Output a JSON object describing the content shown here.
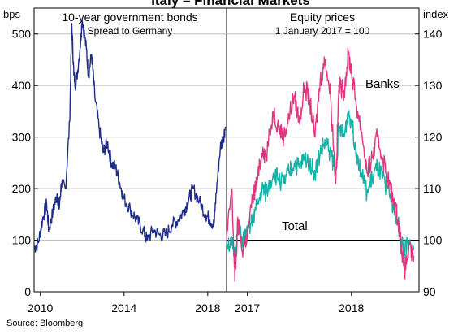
{
  "title": "Italy – Financial Markets",
  "source": "Source:   Bloomberg",
  "colors": {
    "bonds": "#1f2d8a",
    "banks": "#e0357f",
    "total": "#12b3a8"
  },
  "chart_data": [
    {
      "type": "line",
      "title": "10-year government bonds",
      "subtitle": "Spread to Germany",
      "ylabel": "bps",
      "ylim": [
        0,
        550
      ],
      "yticks": [
        0,
        100,
        200,
        300,
        400,
        500
      ],
      "xlim": [
        2009.7,
        2018.9
      ],
      "xticks": [
        "2010",
        "2014",
        "2018"
      ],
      "xtick_values": [
        2010,
        2014,
        2018
      ],
      "series": [
        {
          "name": "",
          "x": [
            2009.7,
            2009.9,
            2010.1,
            2010.3,
            2010.4,
            2010.6,
            2010.8,
            2010.9,
            2011.0,
            2011.2,
            2011.4,
            2011.5,
            2011.6,
            2011.7,
            2011.9,
            2012.0,
            2012.2,
            2012.3,
            2012.45,
            2012.6,
            2012.8,
            2013.0,
            2013.2,
            2013.4,
            2013.6,
            2013.8,
            2014.0,
            2014.3,
            2014.6,
            2014.9,
            2015.1,
            2015.4,
            2015.7,
            2016.0,
            2016.3,
            2016.6,
            2016.9,
            2017.1,
            2017.3,
            2017.6,
            2017.9,
            2018.1,
            2018.3,
            2018.4,
            2018.6,
            2018.75,
            2018.85
          ],
          "values": [
            85,
            95,
            140,
            170,
            120,
            155,
            190,
            160,
            210,
            200,
            330,
            520,
            420,
            400,
            475,
            530,
            470,
            420,
            460,
            380,
            320,
            270,
            290,
            250,
            240,
            210,
            180,
            160,
            140,
            120,
            100,
            120,
            110,
            110,
            130,
            140,
            160,
            180,
            200,
            175,
            150,
            140,
            130,
            190,
            280,
            300,
            320
          ]
        }
      ]
    },
    {
      "type": "line",
      "title": "Equity prices",
      "subtitle": "1 January 2017 = 100",
      "ylabel": "index",
      "ylim": [
        90,
        145
      ],
      "yticks": [
        90,
        100,
        110,
        120,
        130,
        140
      ],
      "xlim": [
        2016.95,
        2018.8
      ],
      "xticks": [
        "2017",
        "2018"
      ],
      "xtick_values": [
        2017.15,
        2018.15
      ],
      "reference_line": 100,
      "series": [
        {
          "name": "Banks",
          "x": [
            2016.95,
            2017.0,
            2017.03,
            2017.06,
            2017.1,
            2017.15,
            2017.2,
            2017.25,
            2017.3,
            2017.33,
            2017.4,
            2017.45,
            2017.5,
            2017.55,
            2017.6,
            2017.65,
            2017.7,
            2017.75,
            2017.8,
            2017.85,
            2017.9,
            2017.95,
            2018.0,
            2018.03,
            2018.08,
            2018.12,
            2018.15,
            2018.2,
            2018.25,
            2018.3,
            2018.35,
            2018.4,
            2018.45,
            2018.5,
            2018.55,
            2018.6,
            2018.63,
            2018.66,
            2018.7,
            2018.75
          ],
          "values": [
            100,
            110,
            92,
            104,
            98,
            101,
            108,
            112,
            118,
            116,
            125,
            122,
            120,
            124,
            128,
            123,
            130,
            127,
            120,
            131,
            135,
            128,
            111,
            130,
            129,
            136,
            133,
            126,
            121,
            113,
            116,
            120,
            116,
            112,
            108,
            104,
            99,
            94,
            98,
            97
          ]
        },
        {
          "name": "Total",
          "x": [
            2016.95,
            2017.0,
            2017.03,
            2017.06,
            2017.1,
            2017.15,
            2017.2,
            2017.25,
            2017.3,
            2017.33,
            2017.4,
            2017.45,
            2017.5,
            2017.55,
            2017.6,
            2017.65,
            2017.7,
            2017.75,
            2017.8,
            2017.85,
            2017.9,
            2017.95,
            2018.0,
            2018.03,
            2018.08,
            2018.12,
            2018.15,
            2018.2,
            2018.25,
            2018.3,
            2018.35,
            2018.4,
            2018.45,
            2018.5,
            2018.55,
            2018.6,
            2018.63,
            2018.66,
            2018.7,
            2018.75
          ],
          "values": [
            100,
            99,
            97,
            102,
            100,
            101,
            104,
            107,
            110,
            109,
            113,
            112,
            111,
            113,
            115,
            114,
            116,
            115,
            113,
            117,
            119,
            117,
            113,
            122,
            120,
            125,
            123,
            117,
            113,
            109,
            112,
            114,
            112,
            110,
            107,
            103,
            100,
            98,
            99,
            98
          ]
        }
      ],
      "annotations": [
        {
          "text": "Banks",
          "series": "Banks"
        },
        {
          "text": "Total",
          "series": "Total"
        }
      ]
    }
  ]
}
